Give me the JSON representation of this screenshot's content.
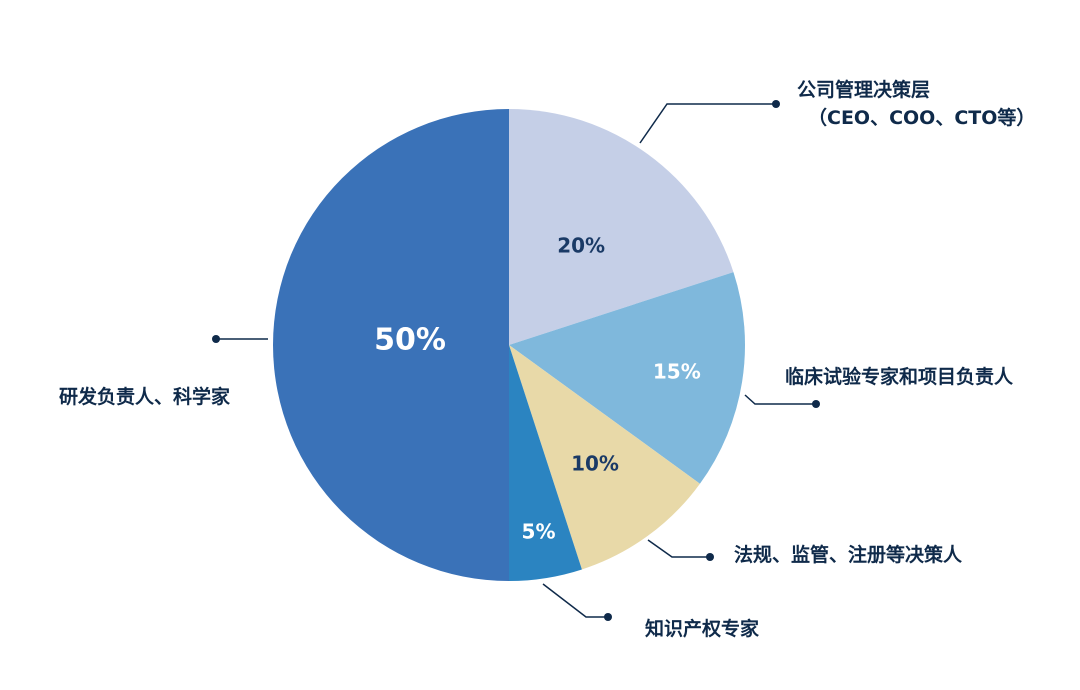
{
  "chart_data": {
    "type": "pie",
    "title": "",
    "slices": [
      {
        "label": "公司管理决策层",
        "label_line2": "（CEO、COO、CTO等）",
        "value": 20,
        "value_label": "20%",
        "color": "#c5cfe7"
      },
      {
        "label": "临床试验专家和项目负责人",
        "value": 15,
        "value_label": "15%",
        "color": "#7fb8dc"
      },
      {
        "label": "法规、监管、注册等决策人",
        "value": 10,
        "value_label": "10%",
        "color": "#e8d9a8"
      },
      {
        "label": "知识产权专家",
        "value": 5,
        "value_label": "5%",
        "color": "#2b84c1"
      },
      {
        "label": "研发负责人、科学家",
        "value": 50,
        "value_label": "50%",
        "color": "#3a72b8"
      }
    ],
    "start_angle": "12 o'clock",
    "direction": "clockwise",
    "label_color": "#0f2a4a",
    "leader_color": "#0f2a4a"
  }
}
